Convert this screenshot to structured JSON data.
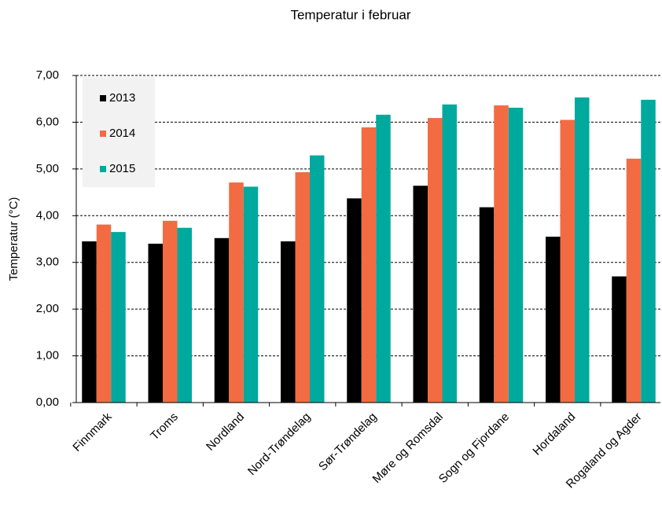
{
  "chart_data": {
    "type": "bar",
    "title": "Temperatur  i februar",
    "y_label": "Temperatur  (°C)",
    "categories": [
      "Finnmark",
      "Troms",
      "Nordland",
      "Nord-Trøndelag",
      "Sør-Trøndelag",
      "Møre og Romsdal",
      "Sogn og Fjordane",
      "Hordaland",
      "Rogaland og Agder"
    ],
    "series": [
      {
        "name": "2013",
        "color": "#000000",
        "values": [
          3.45,
          3.4,
          3.52,
          3.45,
          4.37,
          4.64,
          4.18,
          3.55,
          2.7
        ]
      },
      {
        "name": "2014",
        "color": "#f26b43",
        "values": [
          3.81,
          3.89,
          4.71,
          4.93,
          5.89,
          6.09,
          6.36,
          6.05,
          5.22
        ]
      },
      {
        "name": "2015",
        "color": "#00a99d",
        "values": [
          3.65,
          3.74,
          4.62,
          5.29,
          6.16,
          6.38,
          6.31,
          6.53,
          6.48
        ]
      }
    ],
    "ylim": [
      0,
      7
    ],
    "yticks": [
      {
        "value": 0,
        "label": "0,00"
      },
      {
        "value": 1,
        "label": "1,00"
      },
      {
        "value": 2,
        "label": "2,00"
      },
      {
        "value": 3,
        "label": "3,00"
      },
      {
        "value": 4,
        "label": "4,00"
      },
      {
        "value": 5,
        "label": "5,00"
      },
      {
        "value": 6,
        "label": "6,00"
      },
      {
        "value": 7,
        "label": "7,00"
      }
    ],
    "grid": true,
    "legend": "top-left"
  }
}
